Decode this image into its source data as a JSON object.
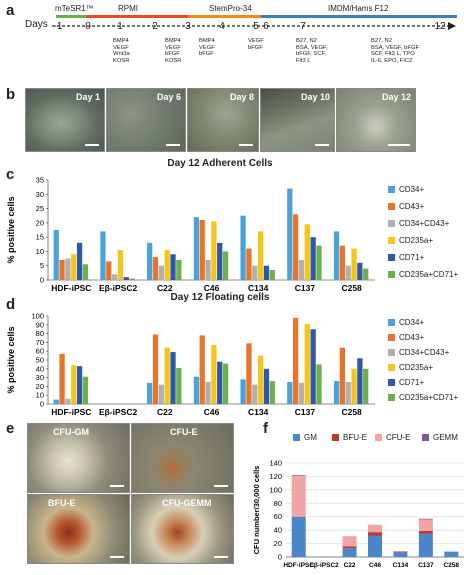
{
  "panels": {
    "a": "a",
    "b": "b",
    "c": "c",
    "d": "d",
    "e": "e",
    "f": "f"
  },
  "timeline": {
    "days_label": "Days",
    "media": [
      {
        "name": "mTeSR1™",
        "color": "#6ab04c"
      },
      {
        "name": "RPMI",
        "color": "#e84d1c"
      },
      {
        "name": "StemPro-34",
        "color": "#f08a1c"
      },
      {
        "name": "IMDM/Hams F12",
        "color": "#3a7fc1"
      }
    ],
    "days": [
      "-1",
      "0",
      "1",
      "2",
      "3",
      "4",
      "5",
      "6",
      "7",
      "12"
    ],
    "cytokines": [
      "BMP4\nVEGF\nWnt3a\nKOSR",
      "BMP4\nVEGF\nbFGF\nKOSR",
      "BMP4\nVEGF\nbFGF",
      "VEGF\nbFGF",
      "B27, N2\nBSA, VEGF,\nbFGF, SCF,\nFlt3 L",
      "B27, N2\nBSA, VEGF, bFGF\nSCF, Flt3 L, TPO\nIL-6, EPO, FICZ"
    ]
  },
  "photos_b": [
    "Day 1",
    "Day 6",
    "Day 8",
    "Day 10",
    "Day 12"
  ],
  "photos_e": [
    "CFU-GM",
    "CFU-E",
    "BFU-E",
    "CFU-GEMM"
  ],
  "chart_c": {
    "type": "bar",
    "title": "Day 12 Adherent Cells",
    "ylabel": "% positive cells",
    "ylim": [
      0,
      35
    ],
    "yticks": [
      "0",
      "5",
      "10",
      "15",
      "20",
      "25",
      "30",
      "35"
    ],
    "categories": [
      "HDF-iPSC",
      "Eβ-iPSC2",
      "C22",
      "C46",
      "C134",
      "C137",
      "C258"
    ],
    "series": [
      {
        "name": "CD34+",
        "color": "#4aa3d8",
        "values": [
          17.5,
          17,
          13,
          22,
          22.5,
          32,
          17
        ]
      },
      {
        "name": "CD43+",
        "color": "#e8732a",
        "values": [
          7,
          6.5,
          8,
          21,
          11,
          23,
          12
        ]
      },
      {
        "name": "CD34+CD43+",
        "color": "#b0b0b0",
        "values": [
          7.5,
          2,
          5,
          7,
          5,
          7,
          5
        ]
      },
      {
        "name": "CD235a+",
        "color": "#f5c51c",
        "values": [
          9,
          10.5,
          10.5,
          20.5,
          17,
          19.5,
          11
        ]
      },
      {
        "name": "CD71+",
        "color": "#2f58a8",
        "values": [
          13,
          1,
          9,
          13,
          5,
          15,
          6
        ]
      },
      {
        "name": "CD235a+CD71+",
        "color": "#6ab04c",
        "values": [
          5.5,
          0.5,
          7,
          10,
          3.5,
          12,
          4
        ]
      }
    ]
  },
  "chart_d": {
    "type": "bar",
    "title": "Day 12 Floating cells",
    "ylabel": "% positive cells",
    "ylim": [
      0,
      100
    ],
    "yticks": [
      "0",
      "10",
      "20",
      "30",
      "40",
      "50",
      "60",
      "70",
      "80",
      "90",
      "100"
    ],
    "categories": [
      "HDF-iPSC",
      "Eβ-iPSC2",
      "C22",
      "C46",
      "C134",
      "C137",
      "C258"
    ],
    "series": [
      {
        "name": "CD34+",
        "color": "#4aa3d8",
        "values": [
          5,
          0,
          24,
          31,
          28,
          25,
          26
        ]
      },
      {
        "name": "CD43+",
        "color": "#e8732a",
        "values": [
          57,
          0,
          79,
          78,
          69,
          98,
          64
        ]
      },
      {
        "name": "CD34+CD43+",
        "color": "#b0b0b0",
        "values": [
          6,
          0,
          22,
          25,
          22,
          24,
          25
        ]
      },
      {
        "name": "CD235a+",
        "color": "#f5c51c",
        "values": [
          44,
          0,
          64,
          67,
          55,
          91,
          40
        ]
      },
      {
        "name": "CD71+",
        "color": "#2f58a8",
        "values": [
          43,
          0,
          59,
          48,
          40,
          85,
          52
        ]
      },
      {
        "name": "CD235a+CD71+",
        "color": "#6ab04c",
        "values": [
          31,
          0,
          41,
          46,
          26,
          45,
          40
        ]
      }
    ]
  },
  "chart_f": {
    "type": "bar",
    "stacked": true,
    "ylabel": "CFU number/30,000 cells",
    "ylim": [
      0,
      140
    ],
    "yticks": [
      "0",
      "20",
      "40",
      "60",
      "80",
      "100",
      "120",
      "140"
    ],
    "categories": [
      "HDF-iPSC",
      "Eβ-iPSC2",
      "C22",
      "C46",
      "C134",
      "C137",
      "C258"
    ],
    "series": [
      {
        "name": "GM",
        "color": "#4a86c8",
        "values": [
          60,
          0,
          13,
          32,
          7,
          35,
          8
        ]
      },
      {
        "name": "BFU-E",
        "color": "#c0392b",
        "values": [
          0,
          0,
          3,
          5,
          1,
          4,
          0
        ]
      },
      {
        "name": "CFU-E",
        "color": "#f2a5a5",
        "values": [
          61,
          0,
          15,
          11,
          1,
          17,
          0
        ]
      },
      {
        "name": "GEMM",
        "color": "#7d5a8f",
        "values": [
          1,
          0,
          0,
          0,
          0,
          1,
          0
        ]
      }
    ]
  }
}
